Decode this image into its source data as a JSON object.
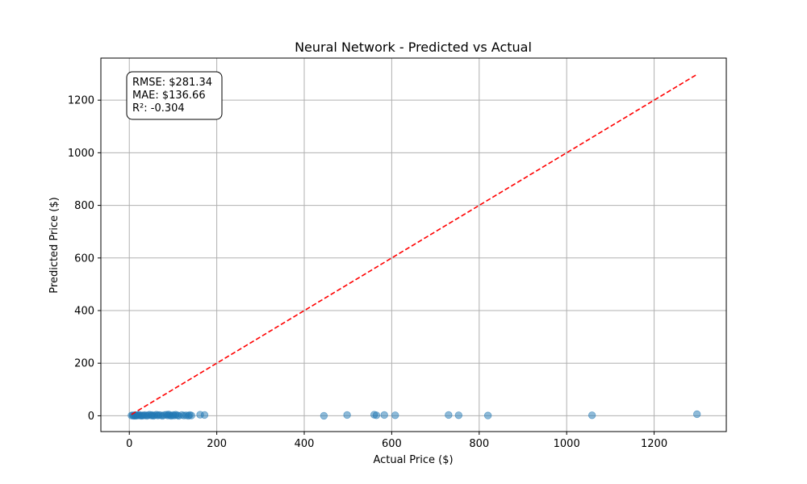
{
  "chart_data": {
    "type": "scatter",
    "title": "Neural Network - Predicted vs Actual",
    "xlabel": "Actual Price ($)",
    "ylabel": "Predicted Price ($)",
    "xlim": [
      -65,
      1365
    ],
    "ylim": [
      -60,
      1360
    ],
    "xticks": [
      0,
      200,
      400,
      600,
      800,
      1000,
      1200
    ],
    "yticks": [
      0,
      200,
      400,
      600,
      800,
      1000,
      1200
    ],
    "grid": true,
    "point_color": "#1f77b4",
    "line_color": "#ff0000",
    "reference_line": {
      "from": [
        5,
        5
      ],
      "to": [
        1300,
        1300
      ],
      "style": "dashed"
    },
    "stats": [
      "RMSE: $281.34",
      "MAE: $136.66",
      "R²: -0.304"
    ],
    "points": [
      {
        "x": 5,
        "y": 1
      },
      {
        "x": 8,
        "y": 2
      },
      {
        "x": 10,
        "y": 0
      },
      {
        "x": 12,
        "y": 1
      },
      {
        "x": 14,
        "y": 3
      },
      {
        "x": 15,
        "y": 0
      },
      {
        "x": 18,
        "y": 2
      },
      {
        "x": 20,
        "y": 1
      },
      {
        "x": 22,
        "y": 4
      },
      {
        "x": 25,
        "y": 1
      },
      {
        "x": 28,
        "y": 0
      },
      {
        "x": 30,
        "y": 2
      },
      {
        "x": 33,
        "y": 1
      },
      {
        "x": 36,
        "y": 3
      },
      {
        "x": 40,
        "y": 0
      },
      {
        "x": 43,
        "y": 2
      },
      {
        "x": 46,
        "y": 4
      },
      {
        "x": 50,
        "y": 1
      },
      {
        "x": 52,
        "y": 3
      },
      {
        "x": 55,
        "y": 0
      },
      {
        "x": 58,
        "y": 2
      },
      {
        "x": 62,
        "y": 4
      },
      {
        "x": 65,
        "y": 1
      },
      {
        "x": 68,
        "y": 3
      },
      {
        "x": 72,
        "y": 2
      },
      {
        "x": 76,
        "y": 0
      },
      {
        "x": 80,
        "y": 3
      },
      {
        "x": 85,
        "y": 4
      },
      {
        "x": 88,
        "y": 1
      },
      {
        "x": 90,
        "y": 5
      },
      {
        "x": 93,
        "y": 2
      },
      {
        "x": 96,
        "y": 0
      },
      {
        "x": 100,
        "y": 3
      },
      {
        "x": 103,
        "y": 1
      },
      {
        "x": 106,
        "y": 4
      },
      {
        "x": 110,
        "y": 2
      },
      {
        "x": 113,
        "y": 0
      },
      {
        "x": 120,
        "y": 3
      },
      {
        "x": 125,
        "y": 1
      },
      {
        "x": 130,
        "y": 2
      },
      {
        "x": 135,
        "y": 0
      },
      {
        "x": 138,
        "y": 3
      },
      {
        "x": 142,
        "y": 1
      },
      {
        "x": 162,
        "y": 4
      },
      {
        "x": 172,
        "y": 3
      },
      {
        "x": 445,
        "y": 0
      },
      {
        "x": 498,
        "y": 3
      },
      {
        "x": 560,
        "y": 4
      },
      {
        "x": 565,
        "y": 2
      },
      {
        "x": 583,
        "y": 3
      },
      {
        "x": 608,
        "y": 2
      },
      {
        "x": 730,
        "y": 3
      },
      {
        "x": 753,
        "y": 2
      },
      {
        "x": 820,
        "y": 1
      },
      {
        "x": 1058,
        "y": 2
      },
      {
        "x": 1298,
        "y": 6
      }
    ]
  }
}
